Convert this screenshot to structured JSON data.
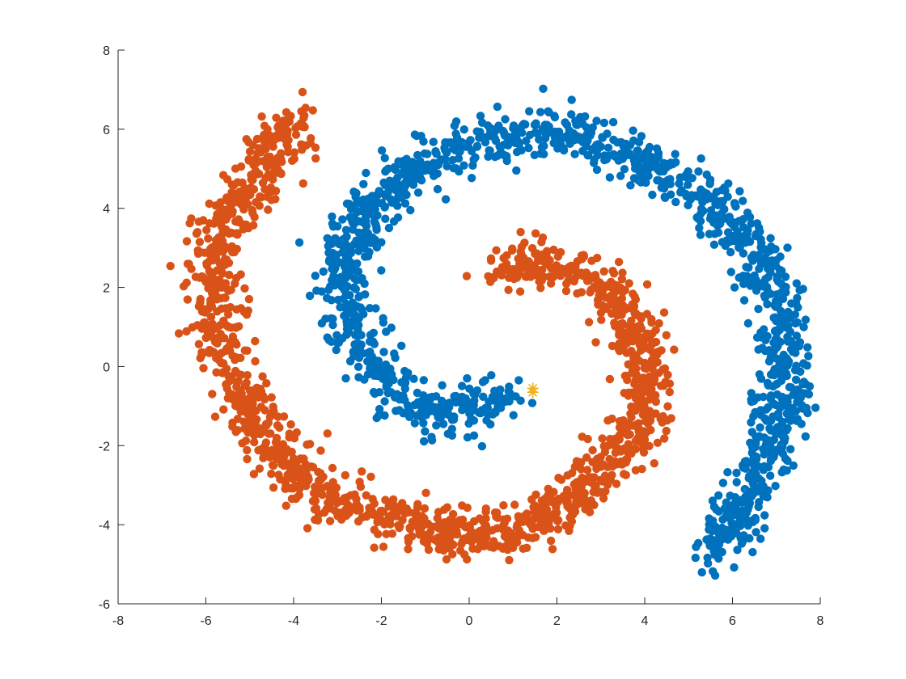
{
  "chart_data": {
    "type": "scatter",
    "title": "",
    "xlabel": "",
    "ylabel": "",
    "xlim": [
      -8,
      8
    ],
    "ylim": [
      -6,
      8
    ],
    "x_ticks": [
      "-8",
      "-6",
      "-4",
      "-2",
      "0",
      "2",
      "4",
      "6",
      "8"
    ],
    "y_ticks": [
      "-6",
      "-4",
      "-2",
      "0",
      "2",
      "4",
      "6",
      "8"
    ],
    "grid": false,
    "legend": "none",
    "box": "left-bottom axes only",
    "series": [
      {
        "color": "#0072BD",
        "marker": "filled-circle",
        "shape": "spiral arm",
        "approx_points": 1500,
        "spine": [
          [
            0.9,
            -0.7
          ],
          [
            0.3,
            -1.0
          ],
          [
            -0.5,
            -1.2
          ],
          [
            -1.2,
            -1.0
          ],
          [
            -1.8,
            -0.6
          ],
          [
            -2.2,
            0.1
          ],
          [
            -2.6,
            0.9
          ],
          [
            -2.9,
            1.9
          ],
          [
            -2.8,
            3.0
          ],
          [
            -2.3,
            4.0
          ],
          [
            -1.4,
            4.9
          ],
          [
            -0.3,
            5.5
          ],
          [
            0.9,
            5.8
          ],
          [
            2.1,
            5.9
          ],
          [
            3.2,
            5.6
          ],
          [
            4.3,
            5.0
          ],
          [
            5.3,
            4.3
          ],
          [
            6.2,
            3.3
          ],
          [
            6.9,
            2.1
          ],
          [
            7.2,
            0.8
          ],
          [
            7.2,
            -0.5
          ],
          [
            6.9,
            -1.7
          ],
          [
            6.5,
            -2.9
          ],
          [
            6.0,
            -3.9
          ],
          [
            5.5,
            -4.8
          ]
        ],
        "half_width": 0.55
      },
      {
        "color": "#D95319",
        "marker": "filled-circle",
        "shape": "spiral arm",
        "approx_points": 1500,
        "spine": [
          [
            0.7,
            2.2
          ],
          [
            1.5,
            2.7
          ],
          [
            2.4,
            2.4
          ],
          [
            3.2,
            1.9
          ],
          [
            3.8,
            1.0
          ],
          [
            4.1,
            0.0
          ],
          [
            4.0,
            -1.1
          ],
          [
            3.5,
            -2.1
          ],
          [
            2.8,
            -3.0
          ],
          [
            1.8,
            -3.7
          ],
          [
            0.7,
            -4.2
          ],
          [
            -0.5,
            -4.2
          ],
          [
            -1.7,
            -3.9
          ],
          [
            -2.8,
            -3.6
          ],
          [
            -3.6,
            -3.0
          ],
          [
            -4.3,
            -2.2
          ],
          [
            -4.9,
            -1.2
          ],
          [
            -5.4,
            -0.1
          ],
          [
            -5.8,
            1.1
          ],
          [
            -5.9,
            2.3
          ],
          [
            -5.6,
            3.5
          ],
          [
            -5.0,
            4.6
          ],
          [
            -4.4,
            5.6
          ],
          [
            -3.8,
            6.3
          ]
        ],
        "half_width": 0.55
      },
      {
        "color": "#EDB120",
        "marker": "asterisk",
        "points": [
          [
            1.45,
            -0.55
          ],
          [
            1.45,
            -0.65
          ]
        ]
      }
    ]
  }
}
